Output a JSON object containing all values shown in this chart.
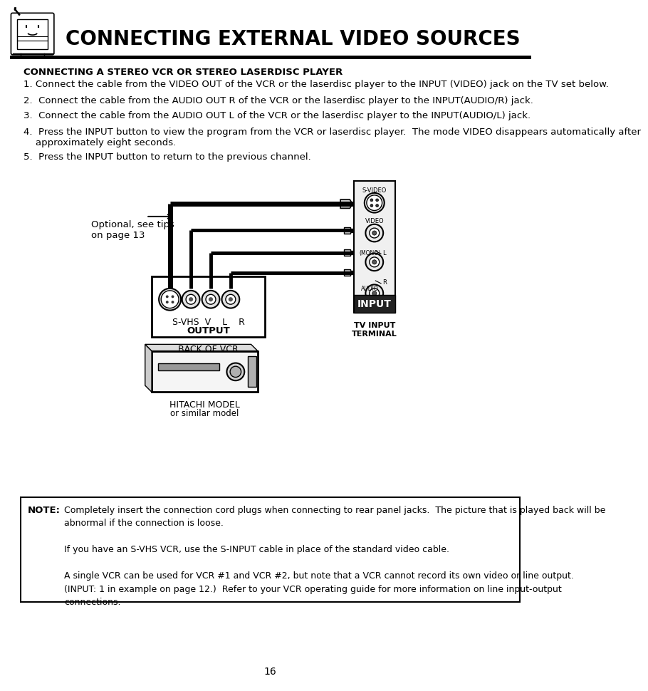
{
  "title": "CONNECTING EXTERNAL VIDEO SOURCES",
  "subtitle": "CONNECTING A STEREO VCR OR STEREO LASERDISC PLAYER",
  "steps": [
    "1. Connect the cable from the VIDEO OUT of the VCR or the laserdisc player to the INPUT (VIDEO) jack on the TV set below.",
    "2.  Connect the cable from the AUDIO OUT R of the VCR or the laserdisc player to the INPUT(AUDIO/R) jack.",
    "3.  Connect the cable from the AUDIO OUT L of the VCR or the laserdisc player to the INPUT(AUDIO/L) jack.",
    "4.  Press the INPUT button to view the program from the VCR or laserdisc player.  The mode VIDEO disappears automatically after\n    approximately eight seconds.",
    "5.  Press the INPUT button to return to the previous channel."
  ],
  "note_label": "NOTE:",
  "note_text_col1": "Completely insert the connection cord plugs when connecting to rear panel jacks.  The picture that is played back will be\nabnormal if the connection is loose.\n\nIf you have an S-VHS VCR, use the S-INPUT cable in place of the standard video cable.\n\nA single VCR can be used for VCR #1 and VCR #2, but note that a VCR cannot record its own video or line output.\n(INPUT: 1 in example on page 12.)  Refer to your VCR operating guide for more information on line input-output\nconnections.",
  "page_number": "16",
  "optional_label": "Optional, see tips\non page 13",
  "output_label": "OUTPUT",
  "back_of_vcr": "BACK OF VCR",
  "hitachi_model": "HITACHI MODEL",
  "similar_model": "or similar model",
  "tv_input_label": "TV INPUT\nTERMINAL",
  "s_vhs_label": "S-VHS  V    L    R",
  "s_video_label": "S-VIDEO",
  "video_label": "VIDEO",
  "mono_label": "(MONO)",
  "l_label": "L",
  "audio_label": "AUDIO",
  "r_label": "R",
  "input_label": "INPUT",
  "bg_color": "#ffffff",
  "text_color": "#000000"
}
